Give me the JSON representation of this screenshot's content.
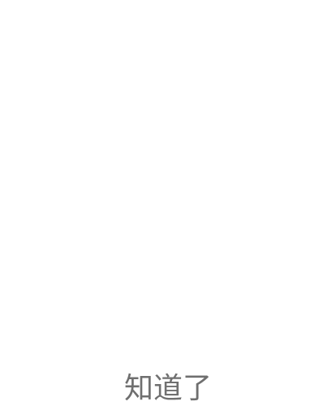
{
  "dialog": {
    "confirm_label": "知道了"
  }
}
